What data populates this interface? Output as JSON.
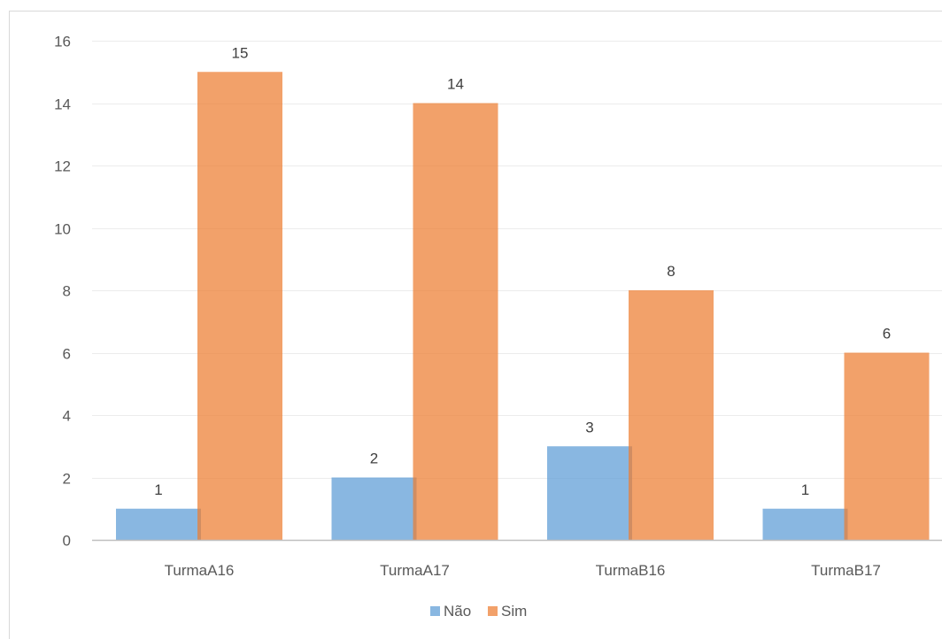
{
  "chart_data": {
    "type": "bar",
    "categories": [
      "TurmaA16",
      "TurmaA17",
      "TurmaB16",
      "TurmaB17"
    ],
    "series": [
      {
        "name": "Não",
        "values": [
          1,
          2,
          3,
          1
        ],
        "color": "#5b9bd5"
      },
      {
        "name": "Sim",
        "values": [
          15,
          14,
          8,
          6
        ],
        "color": "#ed7d31"
      }
    ],
    "title": "",
    "xlabel": "",
    "ylabel": "",
    "ylim": [
      0,
      16
    ],
    "yticks": [
      "0",
      "2",
      "4",
      "6",
      "8",
      "10",
      "12",
      "14",
      "16"
    ],
    "grid": true,
    "legend_position": "bottom",
    "bars_overlap": true
  }
}
